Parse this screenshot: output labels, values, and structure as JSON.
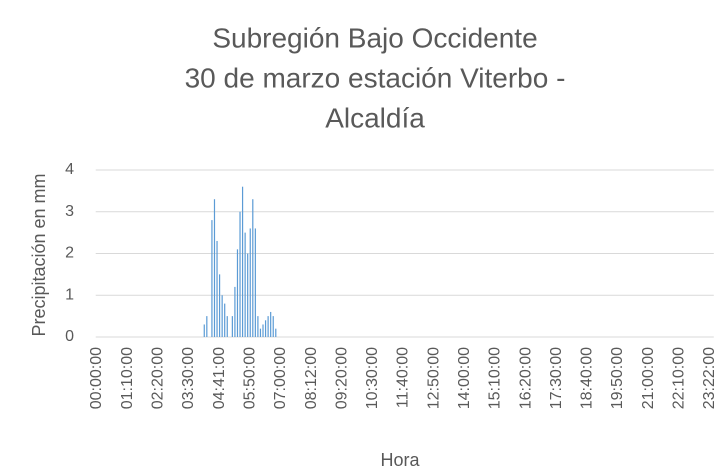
{
  "chart_data": {
    "type": "bar",
    "title": [
      "Subregión Bajo Occidente",
      "30 de marzo estación Viterbo -",
      "Alcaldía"
    ],
    "x_label": "Hora",
    "y_label": "Precipitación en mm",
    "color": "#5b9bd5",
    "grid": true,
    "ylim": [
      0,
      4
    ],
    "yticks": [
      0,
      1,
      2,
      3,
      4
    ],
    "categories": [
      "00:00:00",
      null,
      null,
      null,
      null,
      null,
      null,
      null,
      null,
      null,
      null,
      null,
      "01:10:00",
      null,
      null,
      null,
      null,
      null,
      null,
      null,
      null,
      null,
      null,
      null,
      "02:20:00",
      null,
      null,
      null,
      null,
      null,
      null,
      null,
      null,
      null,
      null,
      null,
      "03:30:00",
      null,
      null,
      null,
      null,
      null,
      null,
      null,
      null,
      null,
      null,
      null,
      "04:41:00",
      null,
      null,
      null,
      null,
      null,
      null,
      null,
      null,
      null,
      null,
      null,
      "05:50:00",
      null,
      null,
      null,
      null,
      null,
      null,
      null,
      null,
      null,
      null,
      null,
      "07:00:00",
      null,
      null,
      null,
      null,
      null,
      null,
      null,
      null,
      null,
      null,
      null,
      "08:12:00",
      null,
      null,
      null,
      null,
      null,
      null,
      null,
      null,
      null,
      null,
      null,
      "09:20:00",
      null,
      null,
      null,
      null,
      null,
      null,
      null,
      null,
      null,
      null,
      null,
      "10:30:00",
      null,
      null,
      null,
      null,
      null,
      null,
      null,
      null,
      null,
      null,
      null,
      "11:40:00",
      null,
      null,
      null,
      null,
      null,
      null,
      null,
      null,
      null,
      null,
      null,
      "12:50:00",
      null,
      null,
      null,
      null,
      null,
      null,
      null,
      null,
      null,
      null,
      null,
      "14:00:00",
      null,
      null,
      null,
      null,
      null,
      null,
      null,
      null,
      null,
      null,
      null,
      "15:10:00",
      null,
      null,
      null,
      null,
      null,
      null,
      null,
      null,
      null,
      null,
      null,
      "16:20:00",
      null,
      null,
      null,
      null,
      null,
      null,
      null,
      null,
      null,
      null,
      null,
      "17:30:00",
      null,
      null,
      null,
      null,
      null,
      null,
      null,
      null,
      null,
      null,
      null,
      "18:40:00",
      null,
      null,
      null,
      null,
      null,
      null,
      null,
      null,
      null,
      null,
      null,
      "19:50:00",
      null,
      null,
      null,
      null,
      null,
      null,
      null,
      null,
      null,
      null,
      null,
      "21:00:00",
      null,
      null,
      null,
      null,
      null,
      null,
      null,
      null,
      null,
      null,
      null,
      "22:10:00",
      null,
      null,
      null,
      null,
      null,
      null,
      null,
      null,
      null,
      null,
      null,
      "23:22:00",
      null
    ],
    "values": [
      0,
      0,
      0,
      0,
      0,
      0,
      0,
      0,
      0,
      0,
      0,
      0,
      0,
      0,
      0,
      0,
      0,
      0,
      0,
      0,
      0,
      0,
      0,
      0,
      0,
      0,
      0,
      0,
      0,
      0,
      0,
      0,
      0,
      0,
      0,
      0,
      0,
      0,
      0,
      0,
      0,
      0,
      0.3,
      0.5,
      0,
      2.8,
      3.3,
      2.3,
      1.5,
      1.0,
      0.8,
      0.5,
      0,
      0.5,
      1.2,
      2.1,
      3.0,
      3.6,
      2.5,
      2.0,
      2.6,
      3.3,
      2.6,
      0.5,
      0.2,
      0.3,
      0.4,
      0.5,
      0.6,
      0.5,
      0.2,
      0,
      0,
      0,
      0,
      0,
      0,
      0,
      0,
      0,
      0,
      0,
      0,
      0,
      0,
      0,
      0,
      0,
      0,
      0,
      0,
      0,
      0,
      0,
      0,
      0,
      0,
      0,
      0,
      0,
      0,
      0,
      0,
      0,
      0,
      0,
      0,
      0,
      0,
      0,
      0,
      0,
      0,
      0,
      0,
      0,
      0,
      0,
      0,
      0,
      0,
      0,
      0,
      0,
      0,
      0,
      0,
      0,
      0,
      0,
      0,
      0,
      0,
      0,
      0,
      0,
      0,
      0,
      0,
      0,
      0,
      0,
      0,
      0,
      0,
      0,
      0,
      0,
      0,
      0,
      0,
      0,
      0,
      0,
      0,
      0,
      0,
      0,
      0,
      0,
      0,
      0,
      0,
      0,
      0,
      0,
      0,
      0,
      0,
      0,
      0,
      0,
      0,
      0,
      0,
      0,
      0,
      0,
      0,
      0,
      0,
      0,
      0,
      0,
      0,
      0,
      0,
      0,
      0,
      0,
      0,
      0,
      0,
      0,
      0,
      0,
      0,
      0,
      0,
      0,
      0,
      0,
      0,
      0,
      0,
      0,
      0,
      0,
      0,
      0,
      0,
      0,
      0,
      0,
      0,
      0,
      0,
      0,
      0,
      0,
      0,
      0,
      0,
      0,
      0,
      0,
      0,
      0,
      0,
      0,
      0,
      0,
      0,
      0,
      0,
      0,
      0,
      0,
      0,
      0,
      0,
      0
    ]
  }
}
